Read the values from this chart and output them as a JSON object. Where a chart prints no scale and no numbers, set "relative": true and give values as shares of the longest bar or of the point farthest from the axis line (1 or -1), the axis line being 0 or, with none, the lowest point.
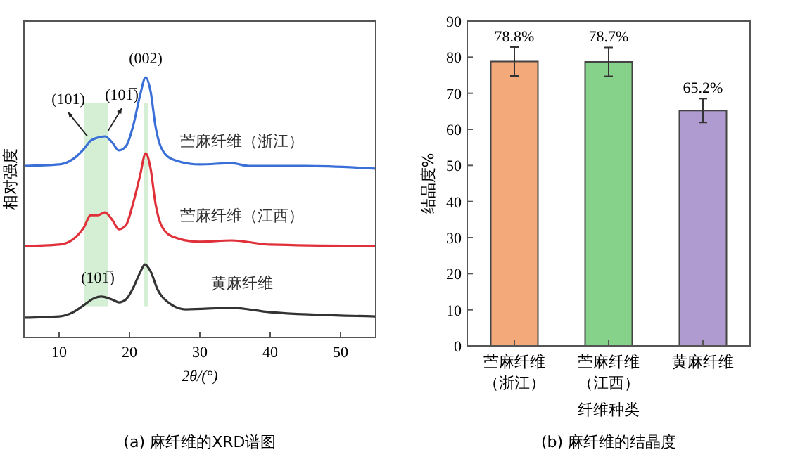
{
  "chart_data": [
    {
      "type": "line",
      "title": "(a) 麻纤维的XRD谱图",
      "xlabel": "2θ/(°)",
      "ylabel": "相对强度",
      "relative": true,
      "tick_labels": "x",
      "xlim": [
        5,
        55
      ],
      "xticks": [
        10,
        20,
        30,
        40,
        50
      ],
      "grid": false,
      "marker": "none",
      "line_style": "solid",
      "series": [
        {
          "name": "苎麻纤维（浙江）",
          "color": "#3a6fd8",
          "x": [
            5,
            10,
            12,
            13.5,
            14.5,
            15.5,
            16.5,
            17.5,
            18.5,
            19.5,
            20.5,
            21.5,
            22.3,
            23,
            23.7,
            24.5,
            26,
            30,
            34.5,
            37,
            45,
            55
          ],
          "values": [
            0.659,
            0.665,
            0.686,
            0.724,
            0.757,
            0.768,
            0.773,
            0.751,
            0.719,
            0.735,
            0.811,
            0.93,
            1,
            0.946,
            0.811,
            0.73,
            0.686,
            0.665,
            0.67,
            0.659,
            0.659,
            0.649
          ]
        },
        {
          "name": "苎麻纤维（江西）",
          "color": "#e0303a",
          "x": [
            5,
            10,
            12,
            13.5,
            14.5,
            15.5,
            16.5,
            17.5,
            18.5,
            19.5,
            20.5,
            21.5,
            22.3,
            23,
            23.7,
            24.5,
            26,
            30,
            34.5,
            40,
            55
          ],
          "values": [
            0.351,
            0.357,
            0.378,
            0.422,
            0.47,
            0.47,
            0.481,
            0.454,
            0.416,
            0.432,
            0.514,
            0.622,
            0.708,
            0.649,
            0.514,
            0.432,
            0.389,
            0.368,
            0.373,
            0.357,
            0.351
          ]
        },
        {
          "name": "黄麻纤维",
          "color": "#333333",
          "x": [
            5,
            10,
            12,
            13.5,
            15,
            16,
            17.5,
            18.5,
            19.5,
            20.5,
            21.5,
            22.2,
            23,
            24,
            25.5,
            28,
            34.5,
            40,
            55
          ],
          "values": [
            0.076,
            0.081,
            0.097,
            0.124,
            0.151,
            0.157,
            0.146,
            0.135,
            0.146,
            0.189,
            0.249,
            0.281,
            0.254,
            0.184,
            0.135,
            0.108,
            0.114,
            0.097,
            0.081
          ]
        }
      ],
      "bands": [
        {
          "axis": "x",
          "from": 13.6,
          "to": 17,
          "color": "#cdeccd"
        },
        {
          "axis": "x",
          "from": 22,
          "to": 22.7,
          "color": "#cdeccd"
        }
      ],
      "annotations": [
        {
          "text": "(002)",
          "x": 22.3,
          "y": 1
        },
        {
          "text": "(101)",
          "x": 14.5,
          "y": 0.757
        },
        {
          "text": "(101̅)",
          "x": 16.5,
          "y": 0.773
        },
        {
          "text": "(101̅)",
          "x": 15.5,
          "y": 0.157
        }
      ]
    },
    {
      "type": "bar",
      "title": "(b) 麻纤维的结晶度",
      "xlabel": "纤维种类",
      "ylabel": "结晶度%",
      "categories": [
        "苎麻纤维（浙江）",
        "苎麻纤维（江西）",
        "黄麻纤维"
      ],
      "values": [
        78.8,
        78.7,
        65.2
      ],
      "colors": [
        "#f4a97a",
        "#86d28a",
        "#b09bd0"
      ],
      "errors": [
        4,
        4,
        3.3
      ],
      "value_labels": [
        "78.8%",
        "78.7%",
        "65.2%"
      ],
      "ylim": [
        0,
        90
      ],
      "yticks": [
        0,
        10,
        20,
        30,
        40,
        50,
        60,
        70,
        80,
        90
      ],
      "grid": false
    }
  ]
}
